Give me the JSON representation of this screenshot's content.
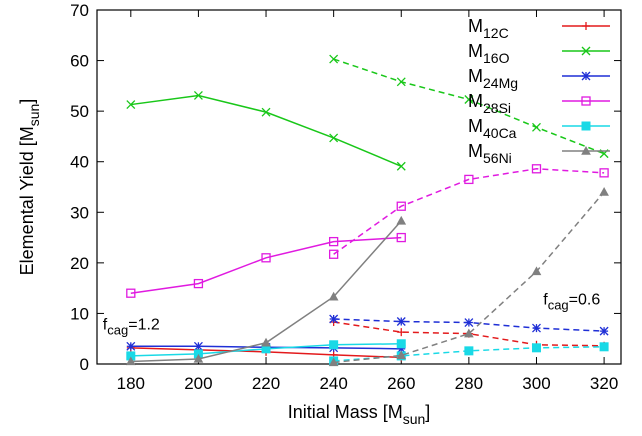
{
  "chart_data": {
    "type": "line",
    "xlabel": {
      "main": "Initial Mass [M",
      "sub": "sun",
      "tail": "]"
    },
    "ylabel": {
      "main": "Elemental Yield [M",
      "sub": "sun",
      "tail": "]"
    },
    "xlim": [
      170,
      325
    ],
    "ylim": [
      0,
      70
    ],
    "x_ticks": [
      180,
      200,
      220,
      240,
      260,
      280,
      300,
      320
    ],
    "y_ticks": [
      0,
      10,
      20,
      30,
      40,
      50,
      60,
      70
    ],
    "x_tick_labels": [
      "180",
      "200",
      "220",
      "240",
      "260",
      "280",
      "300",
      "320"
    ],
    "y_tick_labels": [
      "0",
      "10",
      "20",
      "30",
      "40",
      "50",
      "60",
      "70"
    ],
    "grid": false,
    "legend_position": "top-right",
    "annotations": [
      {
        "id": "fcag12",
        "main": "f",
        "sub": "cag",
        "tail": "=1.2",
        "at": [
          180,
          6.8
        ]
      },
      {
        "id": "fcag06",
        "main": "f",
        "sub": "cag",
        "tail": "=0.6",
        "at": [
          302,
          11.8
        ]
      }
    ],
    "series": [
      {
        "id": "c12",
        "label_main": "M",
        "label_sub": "12C",
        "color": "#e31a1c",
        "marker": "plus",
        "solid": {
          "x": [
            180,
            200,
            220,
            240,
            260
          ],
          "y": [
            3.2,
            2.8,
            2.4,
            1.8,
            1.3
          ]
        },
        "dashed": {
          "x": [
            240,
            260,
            280,
            300,
            320
          ],
          "y": [
            8.3,
            6.3,
            6.0,
            3.8,
            3.6
          ]
        }
      },
      {
        "id": "o16",
        "label_main": "M",
        "label_sub": "16O",
        "color": "#19c719",
        "marker": "cross",
        "solid": {
          "x": [
            180,
            200,
            220,
            240,
            260
          ],
          "y": [
            51.3,
            53.1,
            49.8,
            44.7,
            39.1
          ]
        },
        "dashed": {
          "x": [
            240,
            260,
            280,
            300,
            320
          ],
          "y": [
            60.3,
            55.8,
            52.3,
            46.8,
            41.6
          ]
        }
      },
      {
        "id": "mg24",
        "label_main": "M",
        "label_sub": "24Mg",
        "color": "#1f2fd6",
        "marker": "star",
        "solid": {
          "x": [
            180,
            200,
            220,
            240,
            260
          ],
          "y": [
            3.5,
            3.5,
            3.3,
            3.2,
            3.0
          ]
        },
        "dashed": {
          "x": [
            240,
            260,
            280,
            300,
            320
          ],
          "y": [
            8.9,
            8.4,
            8.2,
            7.1,
            6.5
          ]
        }
      },
      {
        "id": "si28",
        "label_main": "M",
        "label_sub": "28Si",
        "color": "#e01ae0",
        "marker": "square",
        "solid": {
          "x": [
            180,
            200,
            220,
            240,
            260
          ],
          "y": [
            14.0,
            15.9,
            21.0,
            24.2,
            25.0
          ]
        },
        "dashed": {
          "x": [
            240,
            260,
            280,
            300,
            320
          ],
          "y": [
            21.7,
            31.2,
            36.5,
            38.6,
            37.8
          ]
        }
      },
      {
        "id": "ca40",
        "label_main": "M",
        "label_sub": "40Ca",
        "color": "#19d9e6",
        "marker": "filled-square",
        "solid": {
          "x": [
            180,
            200,
            220,
            240,
            260
          ],
          "y": [
            1.6,
            2.0,
            3.0,
            3.8,
            4.0
          ]
        },
        "dashed": {
          "x": [
            240,
            260,
            280,
            300,
            320
          ],
          "y": [
            0.6,
            1.6,
            2.6,
            3.2,
            3.4
          ]
        }
      },
      {
        "id": "ni56",
        "label_main": "M",
        "label_sub": "56Ni",
        "color": "#808080",
        "marker": "triangle",
        "solid": {
          "x": [
            180,
            200,
            220,
            240,
            260
          ],
          "y": [
            0.5,
            1.0,
            4.2,
            13.3,
            28.3
          ]
        },
        "dashed": {
          "x": [
            240,
            260,
            280,
            300,
            320
          ],
          "y": [
            0.3,
            1.7,
            6.0,
            18.3,
            34.0
          ]
        }
      }
    ]
  }
}
